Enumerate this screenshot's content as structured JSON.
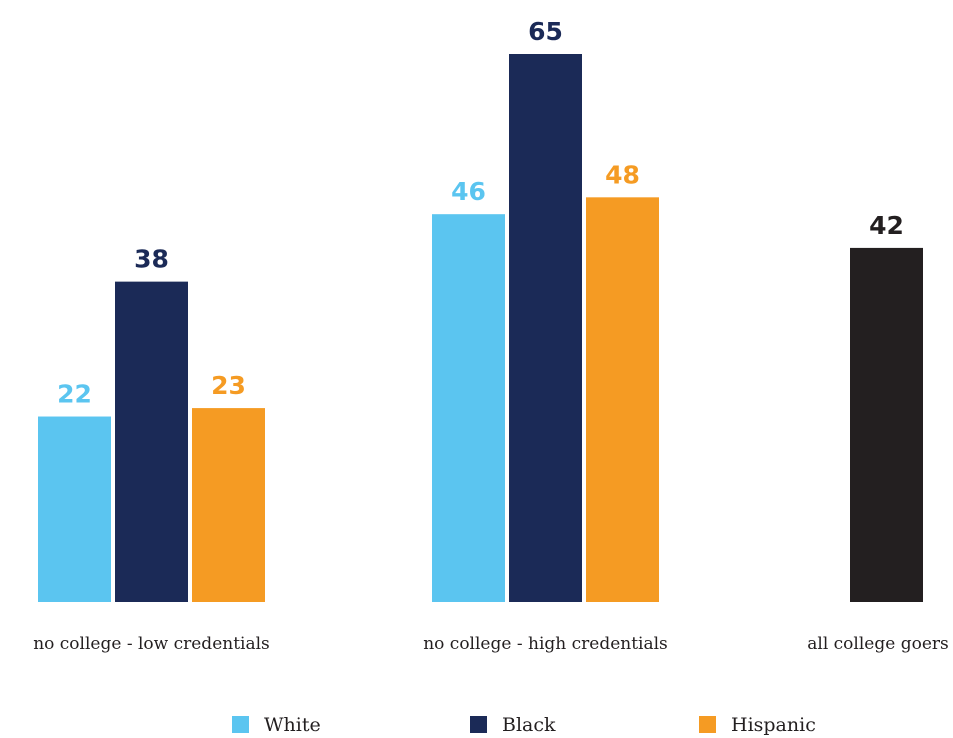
{
  "chart_data": {
    "type": "bar",
    "categories": [
      "no college - low credentials",
      "no college - high credentials",
      "all college goers"
    ],
    "series": [
      {
        "name": "White",
        "color": "#5bc5f0",
        "values": [
          22,
          46,
          null
        ]
      },
      {
        "name": "Black",
        "color": "#1b2a57",
        "values": [
          38,
          65,
          null
        ]
      },
      {
        "name": "Hispanic",
        "color": "#f59b23",
        "values": [
          23,
          48,
          null
        ]
      }
    ],
    "overall": {
      "category": "all college goers",
      "value": 42,
      "color": "#231f20"
    },
    "ylim": [
      0,
      65
    ],
    "grid": false,
    "legend_position": "bottom"
  }
}
